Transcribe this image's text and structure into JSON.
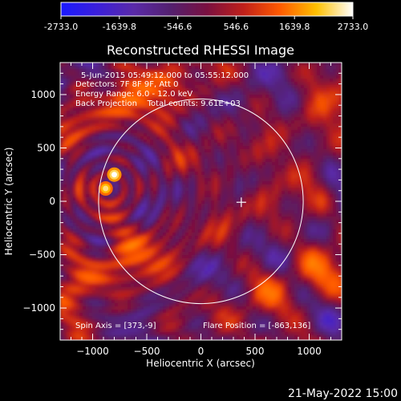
{
  "colorbar": {
    "tick_labels": [
      "-2733.0",
      "-1639.8",
      "-546.6",
      "546.6",
      "1639.8",
      "2733.0"
    ],
    "range": [
      -2733.0,
      2733.0
    ],
    "colors": [
      "#1a1aff",
      "#3b1fd9",
      "#5a2aa8",
      "#53206f",
      "#7a1040",
      "#c0201a",
      "#ff5a00",
      "#ffc000",
      "#ffffff"
    ]
  },
  "chart_data": {
    "type": "heatmap",
    "title": "Reconstructed RHESSI Image",
    "xlabel": "Heliocentric X (arcsec)",
    "ylabel": "Heliocentric Y (arcsec)",
    "xlim": [
      -1300,
      1300
    ],
    "ylim": [
      -1300,
      1300
    ],
    "xticks": [
      -1000,
      -500,
      0,
      500,
      1000
    ],
    "yticks": [
      -1000,
      -500,
      0,
      500,
      1000
    ],
    "info_lines": [
      "5-Jun-2015 05:49:12.000 to 05:55:12.000",
      "Detectors: 7F 8F 9F, Att 0",
      "Energy Range: 6.0 - 12.0 keV",
      "Back Projection    Total counts: 9.61E+03"
    ],
    "spin_axis_label": "Spin Axis = [373,-9]",
    "flare_position_label": "Flare Position = [-863,136]",
    "spin_axis": [
      373,
      -9
    ],
    "flare_position": [
      -863,
      136
    ],
    "solar_limb_radius": 945,
    "bright_sources": [
      {
        "x": -800,
        "y": 250,
        "level": 2733
      },
      {
        "x": -880,
        "y": 120,
        "level": 2400
      }
    ],
    "grid": false
  },
  "footer": {
    "timestamp": "21-May-2022 15:00"
  }
}
